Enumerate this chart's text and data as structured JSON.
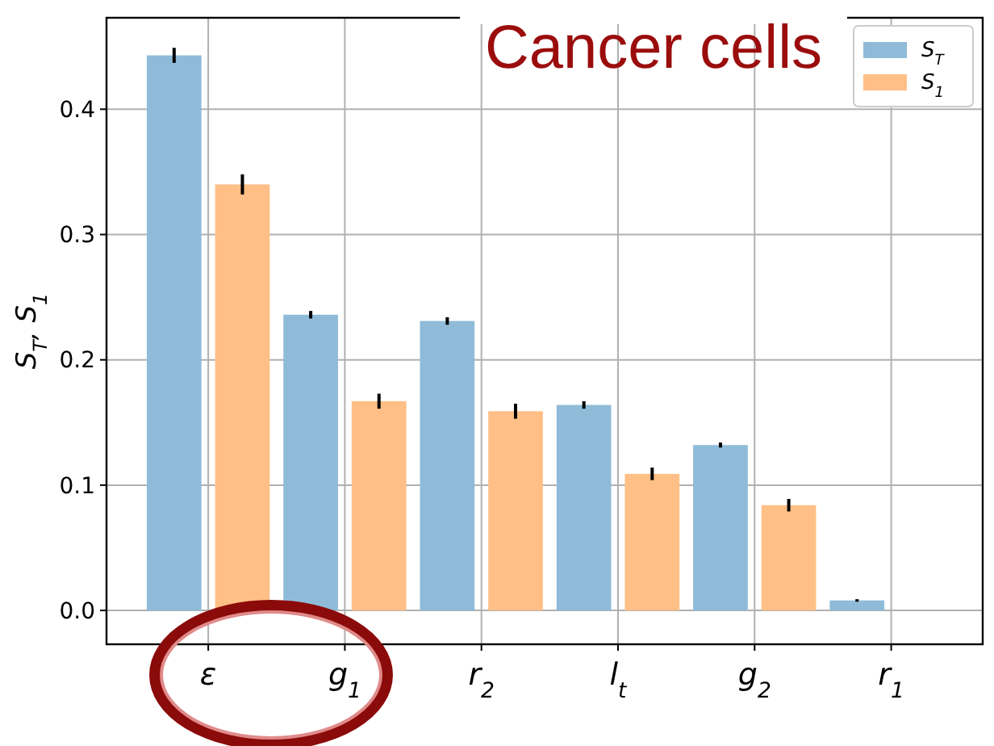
{
  "chart_data": {
    "type": "bar",
    "title": "Cancer cells",
    "ylabel": "S$_{T}$, S$_{1}$",
    "categories": [
      "ε",
      "g$_{1}$",
      "r$_{2}$",
      "l$_{t}$",
      "g$_{2}$",
      "r$_{1}$"
    ],
    "series": [
      {
        "name": "S$_{T}$",
        "color": "#8fbbd9",
        "values": [
          0.443,
          0.236,
          0.231,
          0.164,
          0.132,
          0.008
        ],
        "errors": [
          0.006,
          0.003,
          0.003,
          0.003,
          0.002,
          0.001
        ]
      },
      {
        "name": "S$_{1}$",
        "color": "#ffbf86",
        "values": [
          0.34,
          0.167,
          0.159,
          0.109,
          0.084,
          0.0
        ],
        "errors": [
          0.008,
          0.006,
          0.006,
          0.005,
          0.005,
          null
        ]
      }
    ],
    "ylim": [
      -0.027,
      0.473
    ],
    "yticks": [
      {
        "value": 0,
        "label": "0.0"
      },
      0.1,
      0.2,
      0.3,
      0.4
    ],
    "grid": true,
    "legend": "top right"
  }
}
